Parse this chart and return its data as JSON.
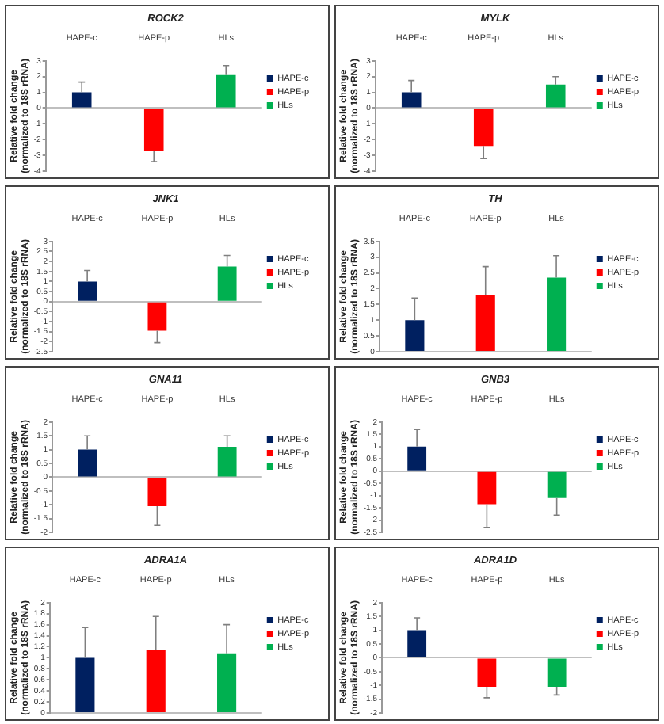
{
  "chart_data": [
    {
      "type": "bar",
      "title": "ROCK2",
      "ylabel": "Relative fold change\n(normalized to 18S rRNA)",
      "categories": [
        "HAPE-c",
        "HAPE-p",
        "HLs"
      ],
      "legend": "right",
      "ylim": [
        -4,
        3
      ],
      "yticks": [
        -4,
        -3,
        -2,
        -1,
        0,
        1,
        2,
        3
      ],
      "series": [
        {
          "name": "HAPE-c",
          "color": "#002060",
          "values": [
            1,
            null,
            null
          ],
          "errors": [
            [
              1,
              1.65
            ],
            null,
            null
          ]
        },
        {
          "name": "HAPE-p",
          "color": "#ff0000",
          "values": [
            null,
            -2.7,
            null
          ],
          "errors": [
            null,
            [
              -3.4,
              -2.7
            ],
            null
          ]
        },
        {
          "name": "HLs",
          "color": "#00b050",
          "values": [
            null,
            null,
            2.1
          ],
          "errors": [
            null,
            null,
            [
              2.1,
              2.7
            ]
          ]
        }
      ]
    },
    {
      "type": "bar",
      "title": "MYLK",
      "ylabel": "Relative fold change\n(normalized to 18S rRNA)",
      "categories": [
        "HAPE-c",
        "HAPE-p",
        "HLs"
      ],
      "legend": "right",
      "ylim": [
        -4,
        3
      ],
      "yticks": [
        -4,
        -3,
        -2,
        -1,
        0,
        1,
        2,
        3
      ],
      "series": [
        {
          "name": "HAPE-c",
          "color": "#002060",
          "values": [
            1,
            null,
            null
          ],
          "errors": [
            [
              1,
              1.75
            ],
            null,
            null
          ]
        },
        {
          "name": "HAPE-p",
          "color": "#ff0000",
          "values": [
            null,
            -2.4,
            null
          ],
          "errors": [
            null,
            [
              -3.2,
              -2.4
            ],
            null
          ]
        },
        {
          "name": "HLs",
          "color": "#00b050",
          "values": [
            null,
            null,
            1.5
          ],
          "errors": [
            null,
            null,
            [
              1.5,
              2
            ]
          ]
        }
      ]
    },
    {
      "type": "bar",
      "title": "JNK1",
      "ylabel": "Relative fold change\n(normalized to 18S rRNA)",
      "categories": [
        "HAPE-c",
        "HAPE-p",
        "HLs"
      ],
      "legend": "right",
      "ylim": [
        -2.5,
        3
      ],
      "yticks": [
        -2.5,
        -2,
        -1.5,
        -1,
        -0.5,
        0,
        0.5,
        1,
        1.5,
        2,
        2.5,
        3
      ],
      "series": [
        {
          "name": "HAPE-c",
          "color": "#002060",
          "values": [
            1,
            null,
            null
          ],
          "errors": [
            [
              1,
              1.55
            ],
            null,
            null
          ]
        },
        {
          "name": "HAPE-p",
          "color": "#ff0000",
          "values": [
            null,
            -1.45,
            null
          ],
          "errors": [
            null,
            [
              -2.05,
              -1.45
            ],
            null
          ]
        },
        {
          "name": "HLs",
          "color": "#00b050",
          "values": [
            null,
            null,
            1.75
          ],
          "errors": [
            null,
            null,
            [
              1.75,
              2.3
            ]
          ]
        }
      ]
    },
    {
      "type": "bar",
      "title": "TH",
      "ylabel": "Relative fold change\n(normalized to 18S rRNA)",
      "categories": [
        "HAPE-c",
        "HAPE-p",
        "HLs"
      ],
      "legend": "right",
      "ylim": [
        0,
        3.5
      ],
      "yticks": [
        0,
        0.5,
        1,
        1.5,
        2,
        2.5,
        3,
        3.5
      ],
      "series": [
        {
          "name": "HAPE-c",
          "color": "#002060",
          "values": [
            1,
            null,
            null
          ],
          "errors": [
            [
              1,
              1.7
            ],
            null,
            null
          ]
        },
        {
          "name": "HAPE-p",
          "color": "#ff0000",
          "values": [
            null,
            1.8,
            null
          ],
          "errors": [
            null,
            [
              1.8,
              2.7
            ],
            null
          ]
        },
        {
          "name": "HLs",
          "color": "#00b050",
          "values": [
            null,
            null,
            2.35
          ],
          "errors": [
            null,
            null,
            [
              2.35,
              3.05
            ]
          ]
        }
      ]
    },
    {
      "type": "bar",
      "title": "GNA11",
      "ylabel": "Relative fold change\n(normalized to 18S rRNA)",
      "categories": [
        "HAPE-c",
        "HAPE-p",
        "HLs"
      ],
      "legend": "right",
      "ylim": [
        -2,
        2
      ],
      "yticks": [
        -2,
        -1.5,
        -1,
        -0.5,
        0,
        0.5,
        1,
        1.5,
        2
      ],
      "series": [
        {
          "name": "HAPE-c",
          "color": "#002060",
          "values": [
            1,
            null,
            null
          ],
          "errors": [
            [
              1,
              1.5
            ],
            null,
            null
          ]
        },
        {
          "name": "HAPE-p",
          "color": "#ff0000",
          "values": [
            null,
            -1.05,
            null
          ],
          "errors": [
            null,
            [
              -1.75,
              -1.05
            ],
            null
          ]
        },
        {
          "name": "HLs",
          "color": "#00b050",
          "values": [
            null,
            null,
            1.1
          ],
          "errors": [
            null,
            null,
            [
              1.1,
              1.5
            ]
          ]
        }
      ]
    },
    {
      "type": "bar",
      "title": "GNB3",
      "ylabel": "Relative fold change\n(normalized to 18S rRNA)",
      "categories": [
        "HAPE-c",
        "HAPE-p",
        "HLs"
      ],
      "legend": "right",
      "ylim": [
        -2.5,
        2
      ],
      "yticks": [
        -2.5,
        -2,
        -1.5,
        -1,
        -0.5,
        0,
        0.5,
        1,
        1.5,
        2
      ],
      "series": [
        {
          "name": "HAPE-c",
          "color": "#002060",
          "values": [
            1,
            null,
            null
          ],
          "errors": [
            [
              1,
              1.7
            ],
            null,
            null
          ]
        },
        {
          "name": "HAPE-p",
          "color": "#ff0000",
          "values": [
            null,
            -1.35,
            null
          ],
          "errors": [
            null,
            [
              -2.3,
              -1.35
            ],
            null
          ]
        },
        {
          "name": "HLs",
          "color": "#00b050",
          "values": [
            null,
            null,
            -1.1
          ],
          "errors": [
            null,
            null,
            [
              -1.8,
              -1.1
            ]
          ]
        }
      ]
    },
    {
      "type": "bar",
      "title": "ADRA1A",
      "ylabel": "Relative fold change\n(normalized to 18S rRNA)",
      "categories": [
        "HAPE-c",
        "HAPE-p",
        "HLs"
      ],
      "legend": "right",
      "ylim": [
        0,
        2
      ],
      "yticks": [
        0,
        0.2,
        0.4,
        0.6,
        0.8,
        1,
        1.2,
        1.4,
        1.6,
        1.8,
        2
      ],
      "series": [
        {
          "name": "HAPE-c",
          "color": "#002060",
          "values": [
            1,
            null,
            null
          ],
          "errors": [
            [
              1,
              1.55
            ],
            null,
            null
          ]
        },
        {
          "name": "HAPE-p",
          "color": "#ff0000",
          "values": [
            null,
            1.15,
            null
          ],
          "errors": [
            null,
            [
              1.15,
              1.75
            ],
            null
          ]
        },
        {
          "name": "HLs",
          "color": "#00b050",
          "values": [
            null,
            null,
            1.08
          ],
          "errors": [
            null,
            null,
            [
              1.08,
              1.6
            ]
          ]
        }
      ]
    },
    {
      "type": "bar",
      "title": "ADRA1D",
      "ylabel": "Relative fold change\n(normalized to 18S rRNA)",
      "categories": [
        "HAPE-c",
        "HAPE-p",
        "HLs"
      ],
      "legend": "right",
      "ylim": [
        -2,
        2
      ],
      "yticks": [
        -2,
        -1.5,
        -1,
        -0.5,
        0,
        0.5,
        1,
        1.5,
        2
      ],
      "series": [
        {
          "name": "HAPE-c",
          "color": "#002060",
          "values": [
            1,
            null,
            null
          ],
          "errors": [
            [
              1,
              1.45
            ],
            null,
            null
          ]
        },
        {
          "name": "HAPE-p",
          "color": "#ff0000",
          "values": [
            null,
            -1.05,
            null
          ],
          "errors": [
            null,
            [
              -1.45,
              -1.05
            ],
            null
          ]
        },
        {
          "name": "HLs",
          "color": "#00b050",
          "values": [
            null,
            null,
            -1.05
          ],
          "errors": [
            null,
            null,
            [
              -1.35,
              -1.05
            ]
          ]
        }
      ]
    }
  ]
}
